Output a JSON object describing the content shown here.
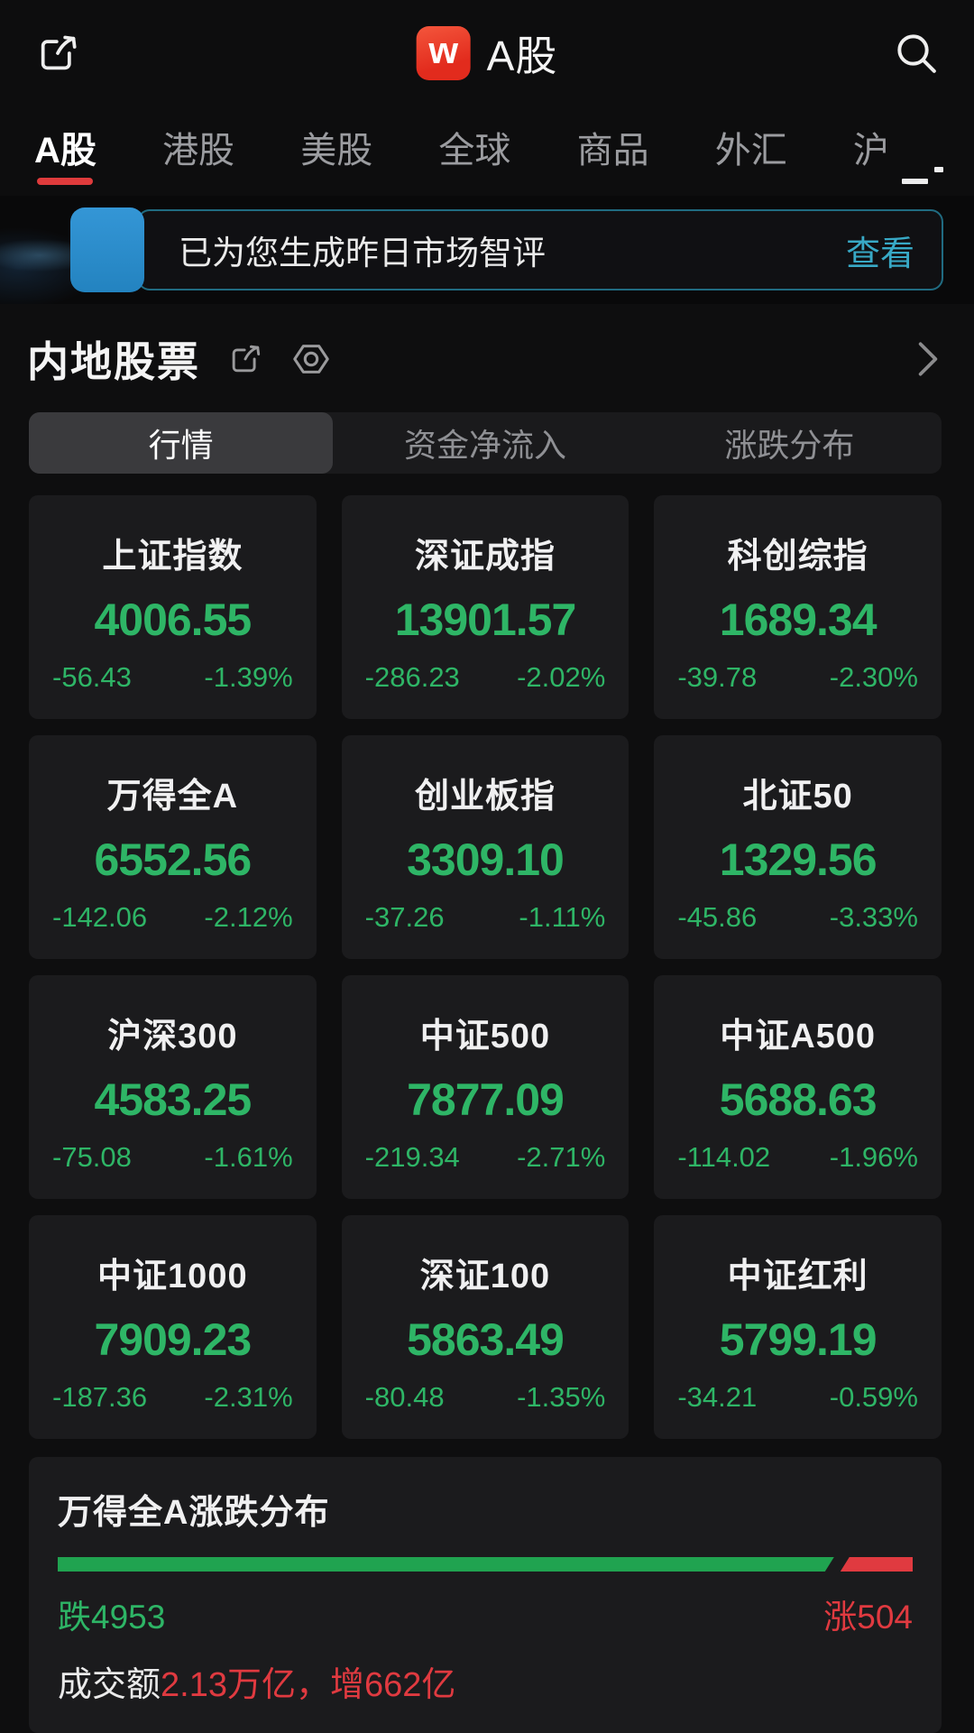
{
  "top_bar": {
    "title": "A股",
    "logo_letter": "w"
  },
  "market_tabs": {
    "items": [
      "A股",
      "港股",
      "美股",
      "全球",
      "商品",
      "外汇",
      "沪"
    ],
    "active_index": 0
  },
  "banner": {
    "message": "已为您生成昨日市场智评",
    "action": "查看"
  },
  "section": {
    "title": "内地股票"
  },
  "sub_tabs": {
    "items": [
      "行情",
      "资金净流入",
      "涨跌分布"
    ],
    "active_index": 0
  },
  "indices": [
    {
      "name": "上证指数",
      "value": "4006.55",
      "change": "-56.43",
      "pct": "-1.39%"
    },
    {
      "name": "深证成指",
      "value": "13901.57",
      "change": "-286.23",
      "pct": "-2.02%"
    },
    {
      "name": "科创综指",
      "value": "1689.34",
      "change": "-39.78",
      "pct": "-2.30%"
    },
    {
      "name": "万得全A",
      "value": "6552.56",
      "change": "-142.06",
      "pct": "-2.12%"
    },
    {
      "name": "创业板指",
      "value": "3309.10",
      "change": "-37.26",
      "pct": "-1.11%"
    },
    {
      "name": "北证50",
      "value": "1329.56",
      "change": "-45.86",
      "pct": "-3.33%"
    },
    {
      "name": "沪深300",
      "value": "4583.25",
      "change": "-75.08",
      "pct": "-1.61%"
    },
    {
      "name": "中证500",
      "value": "7877.09",
      "change": "-219.34",
      "pct": "-2.71%"
    },
    {
      "name": "中证A500",
      "value": "5688.63",
      "change": "-114.02",
      "pct": "-1.96%"
    },
    {
      "name": "中证1000",
      "value": "7909.23",
      "change": "-187.36",
      "pct": "-2.31%"
    },
    {
      "name": "深证100",
      "value": "5863.49",
      "change": "-80.48",
      "pct": "-1.35%"
    },
    {
      "name": "中证红利",
      "value": "5799.19",
      "change": "-34.21",
      "pct": "-0.59%"
    }
  ],
  "distribution": {
    "title": "万得全A涨跌分布",
    "down_label": "跌4953",
    "up_label": "涨504",
    "down_count": 4953,
    "up_count": 504,
    "turnover_prefix": "成交额",
    "turnover_value": "2.13万亿，增662亿"
  },
  "icons": {
    "top_left": "share-icon",
    "top_right": "search-icon",
    "section_icons": [
      "share-icon",
      "settings-hexagon-icon",
      "chevron-right-icon"
    ],
    "tabs_right": "menu-icon"
  },
  "colors": {
    "down_green": "#2eb566",
    "bar_green": "#20a350",
    "up_red": "#e03a40",
    "link_cyan": "#38a9c6",
    "active_underline": "#df3b3c",
    "logo_red": "#e8392a",
    "banner_blue": "#2b8fd0"
  }
}
